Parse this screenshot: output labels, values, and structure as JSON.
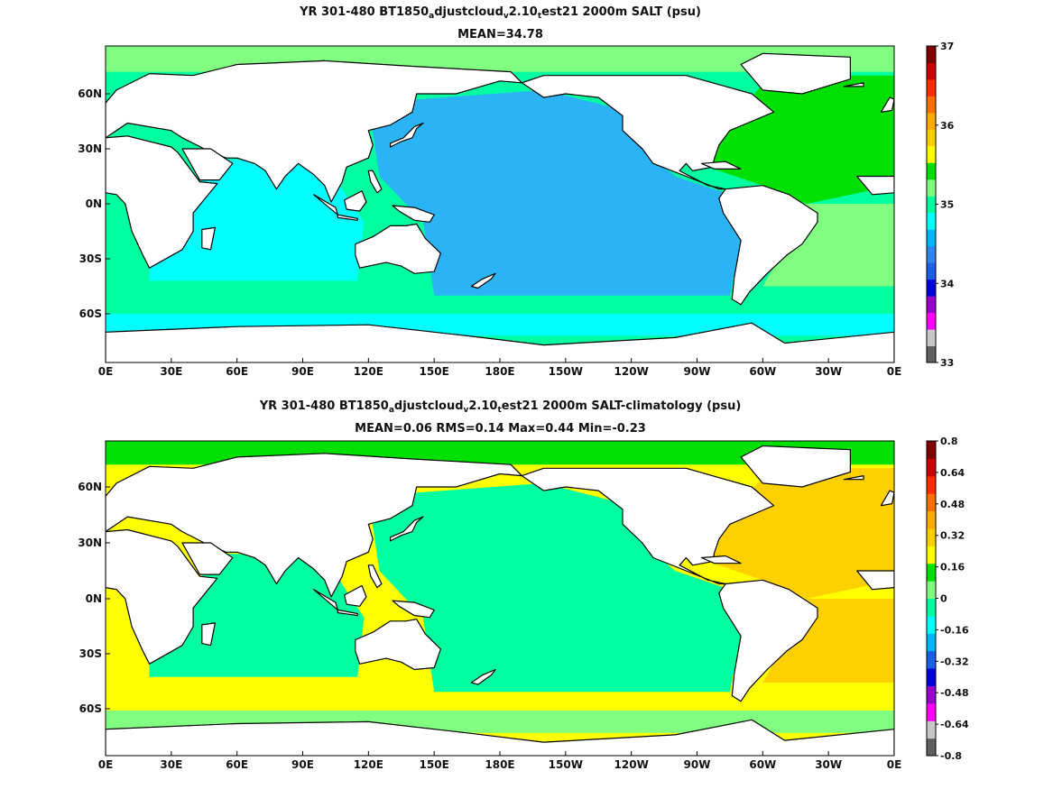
{
  "panels": [
    {
      "title_parts": [
        "YR 301-480 BT1850",
        "a",
        "djustcloud",
        "v",
        "2.10",
        "t",
        "est21 2000m SALT (psu)"
      ],
      "subtitle": "MEAN=34.78",
      "colorbar": {
        "ticks": [
          "37",
          "36",
          "35",
          "34",
          "33"
        ],
        "colors": [
          "#606060",
          "#c8c8c8",
          "#ff00ff",
          "#9900cc",
          "#0000dd",
          "#1a5fe6",
          "#2f86f0",
          "#00b4ff",
          "#00ffff",
          "#00ffa0",
          "#80ff80",
          "#00e000",
          "#ffff00",
          "#ffd000",
          "#ffaa00",
          "#ff7000",
          "#ff2a00",
          "#cc0000",
          "#800000"
        ]
      }
    },
    {
      "title_parts": [
        "YR 301-480 BT1850",
        "a",
        "djustcloud",
        "v",
        "2.10",
        "t",
        "est21 2000m SALT-climatology (psu)"
      ],
      "subtitle": "MEAN=0.06   RMS=0.14   Max=0.44   Min=-0.23",
      "colorbar": {
        "ticks": [
          "0.8",
          "0.64",
          "0.48",
          "0.32",
          "0.16",
          "0",
          "-0.16",
          "-0.32",
          "-0.48",
          "-0.64",
          "-0.8"
        ],
        "colors": [
          "#606060",
          "#c8c8c8",
          "#ff00ff",
          "#9900cc",
          "#0000dd",
          "#1a5fe6",
          "#00b4ff",
          "#00ffff",
          "#00ffa0",
          "#80ff80",
          "#00e000",
          "#ffff00",
          "#ffd000",
          "#ffaa00",
          "#ff7000",
          "#ff2a00",
          "#cc0000",
          "#800000"
        ]
      }
    }
  ],
  "x_ticks": [
    "0E",
    "30E",
    "60E",
    "90E",
    "120E",
    "150E",
    "180E",
    "150W",
    "120W",
    "90W",
    "60W",
    "30W",
    "0E"
  ],
  "y_ticks": [
    "60N",
    "30N",
    "0N",
    "30S",
    "60S"
  ],
  "colors": {
    "land": "#ffffff",
    "coast": "#000000",
    "salt_pacific": "#2ab4f5",
    "salt_indian": "#00ffff",
    "salt_southern": "#00ffa0",
    "salt_atlantic": "#00e000",
    "salt_atlantic_south": "#80ff80",
    "diff_pacific": "#00ffa0",
    "diff_atlantic": "#ffd000",
    "diff_southern": "#ffff00"
  }
}
